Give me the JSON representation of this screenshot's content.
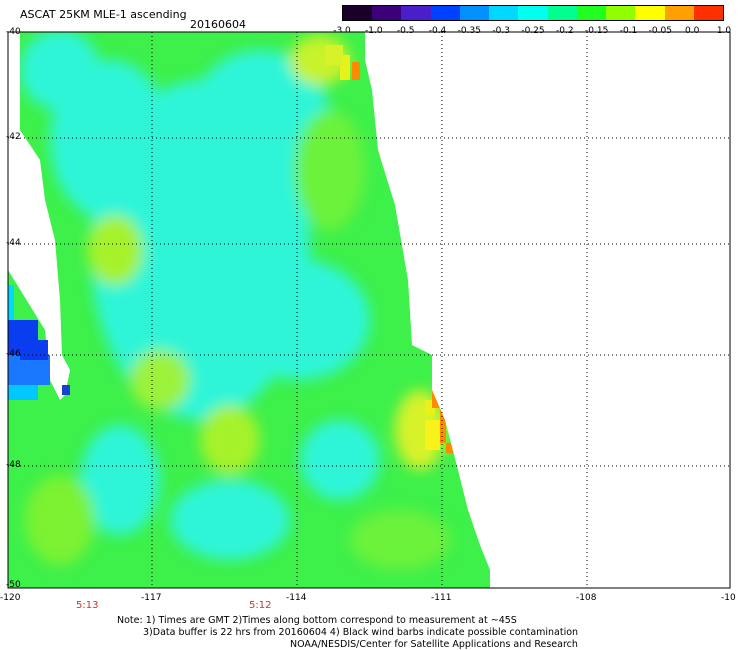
{
  "header": {
    "title": "ASCAT 25KM MLE-1 ascending",
    "date": "20160604"
  },
  "colorbar": {
    "labels": [
      "-3.0",
      "-1.0",
      "-0.5",
      "-0.4",
      "-0.35",
      "-0.3",
      "-0.25",
      "-0.2",
      "-0.15",
      "-0.1",
      "-0.05",
      "0.0",
      "1.0"
    ],
    "colors": [
      "#1a0028",
      "#3b007a",
      "#4b1ecc",
      "#0040ff",
      "#0090ff",
      "#00d8ff",
      "#00ffee",
      "#00ff90",
      "#20ff20",
      "#90ff00",
      "#ffff00",
      "#ffa000",
      "#ff3000"
    ]
  },
  "map": {
    "lat_labels": [
      "-40",
      "-42",
      "-44",
      "-46",
      "-48",
      "-50"
    ],
    "lon_labels": [
      "-120",
      "-117",
      "-114",
      "-111",
      "-108",
      "-10"
    ],
    "time_labels": [
      "5:13",
      "5:12"
    ],
    "colors": {
      "background_field": "#3df04a",
      "cyan_region": "#2ef5d8",
      "deep_blue": "#0a3cf0",
      "yellow": "#e8f21a",
      "orange": "#ff8a00",
      "grid": "#000000"
    }
  },
  "footer": {
    "note_line1": "Note: 1) Times are GMT 2)Times along bottom correspond to measurement at ~45S",
    "note_line2": "3)Data buffer is 22 hrs from 20160604 4) Black wind barbs indicate possible contamination",
    "note_line3": "NOAA/NESDIS/Center for Satellite Applications and Research"
  }
}
